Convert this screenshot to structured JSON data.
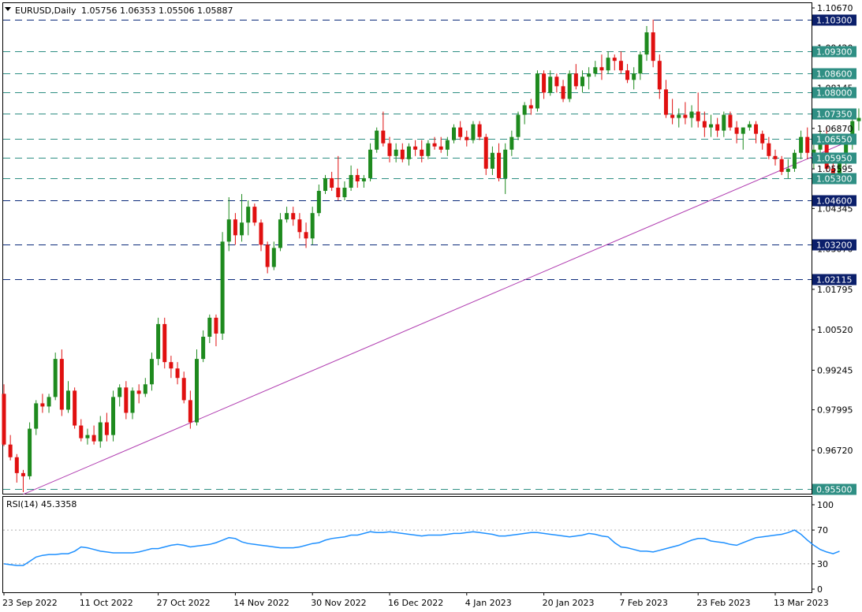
{
  "header": {
    "symbol": "EURUSD,Daily",
    "ohlc": "1.05756 1.06353 1.05506 1.05887"
  },
  "rsi_label": "RSI(14) 45.3358",
  "colors": {
    "bull": "#1e8a1e",
    "bear": "#e01010",
    "level_line": "#0b2a7a",
    "trendline": "#b03cb0",
    "rsi_line": "#1e90ff",
    "badge_dark": "#0b1f6b",
    "badge_teal": "#2f8f84"
  },
  "chart_data": [
    {
      "type": "candlestick",
      "title": "EURUSD,Daily",
      "ylim": [
        0.9535,
        1.1082
      ],
      "price_ticks": [
        "1.10670",
        "1.09420",
        "1.08145",
        "1.06870",
        "1.05595",
        "1.04345",
        "1.03070",
        "1.01795",
        "1.00520",
        "0.99245",
        "0.97995",
        "0.96720"
      ],
      "x_labels": [
        {
          "label": "23 Sep 2022",
          "index": 0
        },
        {
          "label": "11 Oct 2022",
          "index": 12
        },
        {
          "label": "27 Oct 2022",
          "index": 24
        },
        {
          "label": "14 Nov 2022",
          "index": 36
        },
        {
          "label": "30 Nov 2022",
          "index": 48
        },
        {
          "label": "16 Dec 2022",
          "index": 60
        },
        {
          "label": "4 Jan 2023",
          "index": 72
        },
        {
          "label": "20 Jan 2023",
          "index": 84
        },
        {
          "label": "7 Feb 2023",
          "index": 96
        },
        {
          "label": "23 Feb 2023",
          "index": 108
        },
        {
          "label": "13 Mar 2023",
          "index": 120
        }
      ],
      "levels": [
        {
          "price": "1.10300",
          "value": 1.103,
          "badge": "dark"
        },
        {
          "price": "1.09300",
          "value": 1.093,
          "badge": "teal"
        },
        {
          "price": "1.08600",
          "value": 1.086,
          "badge": "teal"
        },
        {
          "price": "1.08000",
          "value": 1.08,
          "badge": "teal"
        },
        {
          "price": "1.07350",
          "value": 1.0735,
          "badge": "teal"
        },
        {
          "price": "1.06550",
          "value": 1.0655,
          "badge": "teal"
        },
        {
          "price": "1.05950",
          "value": 1.0595,
          "badge": "teal"
        },
        {
          "price": "1.05300",
          "value": 1.053,
          "badge": "teal"
        },
        {
          "price": "1.04600",
          "value": 1.046,
          "badge": "dark"
        },
        {
          "price": "1.03200",
          "value": 1.032,
          "badge": "dark"
        },
        {
          "price": "1.02115",
          "value": 1.02115,
          "badge": "dark"
        },
        {
          "price": "0.95500",
          "value": 0.955,
          "badge": "teal"
        }
      ],
      "trendline": {
        "from": {
          "index": 3,
          "value": 0.9533
        },
        "to": {
          "index": 131,
          "value": 1.0643
        }
      },
      "candles": [
        [
          0.985,
          0.988,
          0.9685,
          0.969
        ],
        [
          0.969,
          0.972,
          0.964,
          0.965
        ],
        [
          0.965,
          0.966,
          0.957,
          0.96
        ],
        [
          0.96,
          0.961,
          0.954,
          0.959
        ],
        [
          0.959,
          0.976,
          0.958,
          0.974
        ],
        [
          0.974,
          0.983,
          0.972,
          0.982
        ],
        [
          0.982,
          0.985,
          0.979,
          0.981
        ],
        [
          0.981,
          0.985,
          0.979,
          0.984
        ],
        [
          0.984,
          0.998,
          0.983,
          0.996
        ],
        [
          0.996,
          0.999,
          0.978,
          0.98
        ],
        [
          0.98,
          0.989,
          0.979,
          0.986
        ],
        [
          0.986,
          0.987,
          0.974,
          0.975
        ],
        [
          0.975,
          0.977,
          0.97,
          0.971
        ],
        [
          0.971,
          0.974,
          0.969,
          0.972
        ],
        [
          0.972,
          0.975,
          0.969,
          0.97
        ],
        [
          0.97,
          0.978,
          0.968,
          0.976
        ],
        [
          0.976,
          0.979,
          0.97,
          0.972
        ],
        [
          0.972,
          0.986,
          0.97,
          0.984
        ],
        [
          0.984,
          0.988,
          0.981,
          0.987
        ],
        [
          0.987,
          0.989,
          0.977,
          0.979
        ],
        [
          0.979,
          0.987,
          0.977,
          0.986
        ],
        [
          0.986,
          0.988,
          0.982,
          0.985
        ],
        [
          0.985,
          0.99,
          0.984,
          0.988
        ],
        [
          0.988,
          0.998,
          0.986,
          0.996
        ],
        [
          0.996,
          1.009,
          0.994,
          1.007
        ],
        [
          1.007,
          1.009,
          0.993,
          0.995
        ],
        [
          0.995,
          0.997,
          0.99,
          0.993
        ],
        [
          0.993,
          0.995,
          0.988,
          0.99
        ],
        [
          0.99,
          0.992,
          0.982,
          0.983
        ],
        [
          0.983,
          0.986,
          0.974,
          0.976
        ],
        [
          0.976,
          0.999,
          0.975,
          0.996
        ],
        [
          0.996,
          1.005,
          0.995,
          1.003
        ],
        [
          1.003,
          1.01,
          1.001,
          1.009
        ],
        [
          1.009,
          1.01,
          1.0,
          1.004
        ],
        [
          1.004,
          1.036,
          1.002,
          1.033
        ],
        [
          1.033,
          1.047,
          1.03,
          1.04
        ],
        [
          1.04,
          1.042,
          1.032,
          1.035
        ],
        [
          1.035,
          1.048,
          1.033,
          1.039
        ],
        [
          1.039,
          1.046,
          1.035,
          1.044
        ],
        [
          1.044,
          1.045,
          1.038,
          1.039
        ],
        [
          1.039,
          1.04,
          1.03,
          1.032
        ],
        [
          1.032,
          1.033,
          1.023,
          1.025
        ],
        [
          1.025,
          1.033,
          1.024,
          1.031
        ],
        [
          1.031,
          1.042,
          1.03,
          1.04
        ],
        [
          1.04,
          1.044,
          1.039,
          1.042
        ],
        [
          1.042,
          1.044,
          1.038,
          1.04
        ],
        [
          1.04,
          1.042,
          1.034,
          1.036
        ],
        [
          1.036,
          1.039,
          1.031,
          1.034
        ],
        [
          1.034,
          1.044,
          1.032,
          1.042
        ],
        [
          1.042,
          1.051,
          1.041,
          1.049
        ],
        [
          1.049,
          1.054,
          1.048,
          1.053
        ],
        [
          1.053,
          1.055,
          1.049,
          1.05
        ],
        [
          1.05,
          1.06,
          1.046,
          1.047
        ],
        [
          1.047,
          1.052,
          1.046,
          1.05
        ],
        [
          1.05,
          1.057,
          1.049,
          1.054
        ],
        [
          1.054,
          1.056,
          1.05,
          1.052
        ],
        [
          1.052,
          1.054,
          1.05,
          1.053
        ],
        [
          1.053,
          1.064,
          1.052,
          1.062
        ],
        [
          1.062,
          1.069,
          1.061,
          1.068
        ],
        [
          1.068,
          1.074,
          1.063,
          1.064
        ],
        [
          1.064,
          1.066,
          1.058,
          1.06
        ],
        [
          1.06,
          1.064,
          1.058,
          1.062
        ],
        [
          1.062,
          1.064,
          1.058,
          1.059
        ],
        [
          1.059,
          1.064,
          1.057,
          1.063
        ],
        [
          1.063,
          1.065,
          1.06,
          1.062
        ],
        [
          1.062,
          1.065,
          1.058,
          1.06
        ],
        [
          1.06,
          1.065,
          1.059,
          1.064
        ],
        [
          1.064,
          1.066,
          1.062,
          1.063
        ],
        [
          1.063,
          1.066,
          1.061,
          1.062
        ],
        [
          1.062,
          1.066,
          1.06,
          1.065
        ],
        [
          1.065,
          1.07,
          1.064,
          1.069
        ],
        [
          1.069,
          1.071,
          1.065,
          1.066
        ],
        [
          1.066,
          1.068,
          1.063,
          1.065
        ],
        [
          1.065,
          1.071,
          1.064,
          1.07
        ],
        [
          1.07,
          1.071,
          1.065,
          1.066
        ],
        [
          1.066,
          1.067,
          1.054,
          1.056
        ],
        [
          1.056,
          1.063,
          1.054,
          1.061
        ],
        [
          1.061,
          1.064,
          1.052,
          1.053
        ],
        [
          1.053,
          1.064,
          1.048,
          1.062
        ],
        [
          1.062,
          1.068,
          1.06,
          1.066
        ],
        [
          1.066,
          1.074,
          1.065,
          1.073
        ],
        [
          1.073,
          1.077,
          1.07,
          1.076
        ],
        [
          1.076,
          1.078,
          1.073,
          1.075
        ],
        [
          1.075,
          1.087,
          1.074,
          1.086
        ],
        [
          1.086,
          1.087,
          1.078,
          1.08
        ],
        [
          1.08,
          1.087,
          1.079,
          1.085
        ],
        [
          1.085,
          1.086,
          1.08,
          1.082
        ],
        [
          1.082,
          1.084,
          1.077,
          1.078
        ],
        [
          1.078,
          1.087,
          1.077,
          1.086
        ],
        [
          1.086,
          1.089,
          1.081,
          1.082
        ],
        [
          1.082,
          1.087,
          1.08,
          1.085
        ],
        [
          1.085,
          1.088,
          1.081,
          1.086
        ],
        [
          1.086,
          1.09,
          1.085,
          1.088
        ],
        [
          1.088,
          1.092,
          1.084,
          1.087
        ],
        [
          1.087,
          1.093,
          1.086,
          1.091
        ],
        [
          1.091,
          1.092,
          1.087,
          1.09
        ],
        [
          1.09,
          1.093,
          1.086,
          1.087
        ],
        [
          1.087,
          1.089,
          1.083,
          1.084
        ],
        [
          1.084,
          1.088,
          1.081,
          1.086
        ],
        [
          1.086,
          1.093,
          1.084,
          1.092
        ],
        [
          1.092,
          1.101,
          1.09,
          1.099
        ],
        [
          1.099,
          1.103,
          1.088,
          1.09
        ],
        [
          1.09,
          1.092,
          1.078,
          1.081
        ],
        [
          1.081,
          1.084,
          1.072,
          1.073
        ],
        [
          1.073,
          1.078,
          1.07,
          1.072
        ],
        [
          1.072,
          1.075,
          1.069,
          1.073
        ],
        [
          1.073,
          1.077,
          1.07,
          1.072
        ],
        [
          1.072,
          1.076,
          1.069,
          1.074
        ],
        [
          1.074,
          1.08,
          1.069,
          1.071
        ],
        [
          1.071,
          1.074,
          1.066,
          1.069
        ],
        [
          1.069,
          1.073,
          1.066,
          1.07
        ],
        [
          1.07,
          1.072,
          1.066,
          1.068
        ],
        [
          1.068,
          1.074,
          1.066,
          1.073
        ],
        [
          1.073,
          1.074,
          1.068,
          1.069
        ],
        [
          1.069,
          1.071,
          1.064,
          1.067
        ],
        [
          1.067,
          1.069,
          1.062,
          1.069
        ],
        [
          1.069,
          1.071,
          1.068,
          1.07
        ],
        [
          1.07,
          1.071,
          1.064,
          1.067
        ],
        [
          1.067,
          1.068,
          1.062,
          1.064
        ],
        [
          1.064,
          1.066,
          1.059,
          1.06
        ],
        [
          1.06,
          1.062,
          1.057,
          1.059
        ],
        [
          1.059,
          1.06,
          1.054,
          1.055
        ],
        [
          1.055,
          1.059,
          1.053,
          1.056
        ],
        [
          1.056,
          1.062,
          1.055,
          1.061
        ],
        [
          1.061,
          1.068,
          1.059,
          1.066
        ],
        [
          1.066,
          1.069,
          1.059,
          1.061
        ],
        [
          1.061,
          1.065,
          1.056,
          1.062
        ],
        [
          1.062,
          1.068,
          1.06,
          1.066
        ],
        [
          1.066,
          1.069,
          1.055,
          1.056
        ],
        [
          1.056,
          1.059,
          1.052,
          1.054
        ],
        [
          1.054,
          1.06,
          1.053,
          1.058
        ],
        [
          1.058,
          1.066,
          1.057,
          1.064
        ],
        [
          1.064,
          1.073,
          1.062,
          1.071
        ],
        [
          1.071,
          1.075,
          1.068,
          1.072
        ],
        [
          1.072,
          1.076,
          1.055,
          1.058
        ],
        [
          1.058,
          1.063,
          1.052,
          1.057
        ],
        [
          1.05756,
          1.06353,
          1.05506,
          1.05887
        ]
      ]
    },
    {
      "type": "line",
      "title": "RSI(14) 45.3358",
      "ylim": [
        0,
        100
      ],
      "y_ticks": [
        "100",
        "70",
        "30",
        "0"
      ],
      "reference_levels": [
        70,
        30
      ],
      "series": [
        {
          "values": [
            30,
            29,
            28,
            28,
            33,
            38,
            40,
            41,
            41,
            42,
            42,
            45,
            50,
            49,
            47,
            45,
            44,
            43,
            43,
            43,
            43,
            44,
            46,
            48,
            48,
            50,
            52,
            53,
            52,
            50,
            51,
            52,
            53,
            55,
            58,
            61,
            60,
            56,
            54,
            53,
            52,
            51,
            50,
            49,
            49,
            49,
            50,
            52,
            54,
            55,
            58,
            60,
            61,
            62,
            64,
            64,
            66,
            68,
            67,
            67,
            68,
            67,
            66,
            65,
            64,
            63,
            64,
            64,
            64,
            65,
            66,
            66,
            67,
            68,
            67,
            66,
            65,
            63,
            63,
            64,
            65,
            66,
            67,
            67,
            66,
            65,
            64,
            63,
            62,
            63,
            64,
            66,
            65,
            63,
            62,
            55,
            50,
            49,
            47,
            45,
            45,
            44,
            46,
            48,
            50,
            52,
            55,
            58,
            60,
            60,
            57,
            56,
            55,
            53,
            52,
            55,
            58,
            61,
            62,
            63,
            64,
            65,
            67,
            70,
            65,
            58,
            52,
            47,
            44,
            42,
            45
          ]
        }
      ]
    }
  ]
}
